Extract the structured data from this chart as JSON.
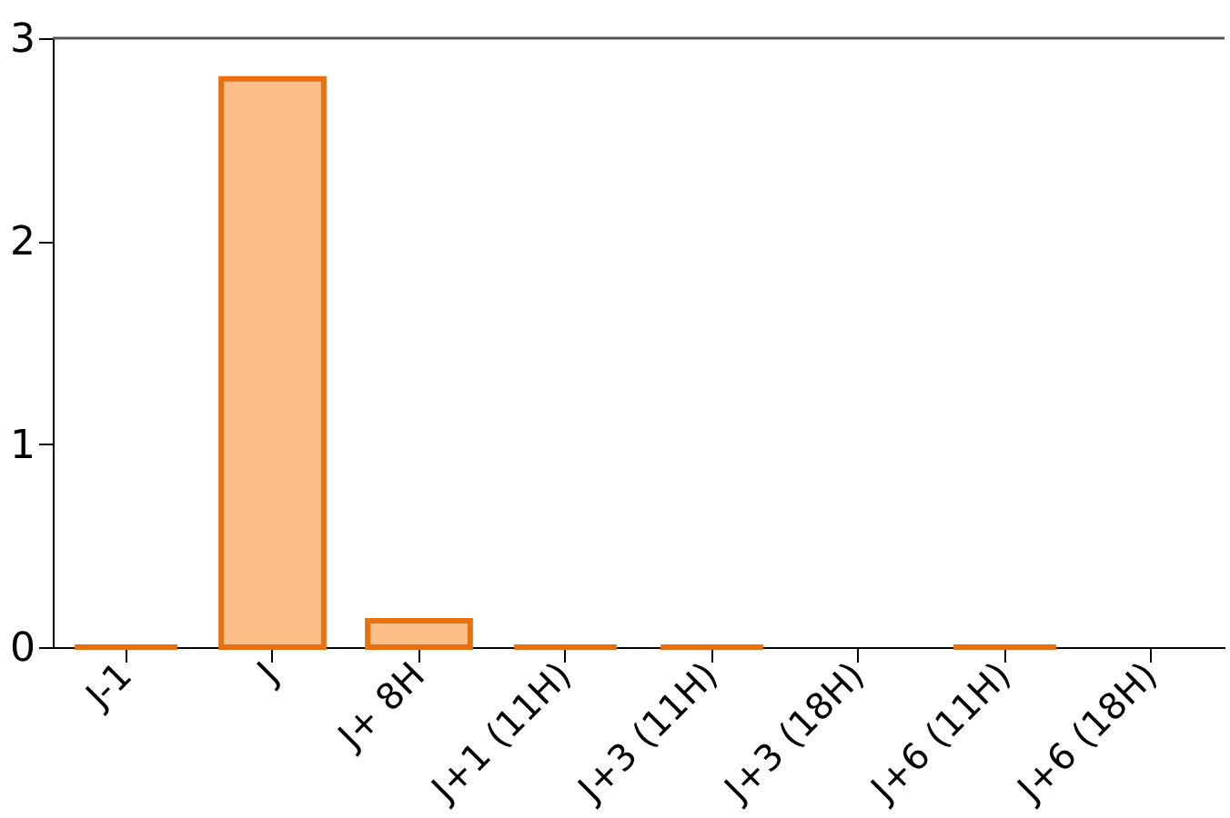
{
  "chart_data": {
    "type": "bar",
    "categories": [
      "J-1",
      "J",
      "J+ 8H",
      "J+1 (11H)",
      "J+3 (11H)",
      "J+3 (18H)",
      "J+6 (11H)",
      "J+6 (18H)"
    ],
    "series": [
      {
        "color": "#e8700e",
        "values": [
          0,
          2.8,
          0.13,
          0,
          0,
          null,
          0,
          null
        ]
      }
    ],
    "ylim": [
      0,
      3
    ],
    "yticks": [
      0,
      1,
      2,
      3
    ],
    "grid": false,
    "ref_lines": [
      {
        "axis": "y",
        "value": 3,
        "color": "#555555"
      }
    ]
  }
}
